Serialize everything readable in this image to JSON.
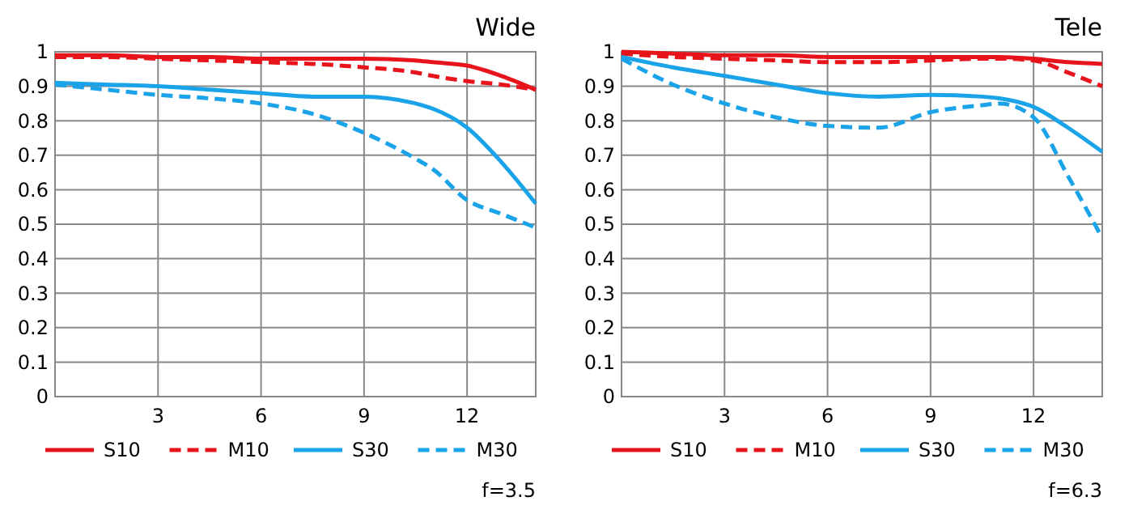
{
  "chart_data": [
    {
      "type": "line",
      "title": "Wide",
      "x": [
        0,
        1.5,
        3,
        4.5,
        6,
        7.5,
        9,
        10.5,
        11,
        12,
        13,
        14
      ],
      "xlim": [
        0,
        14
      ],
      "xticks": [
        3,
        6,
        9,
        12
      ],
      "ylim": [
        0,
        1
      ],
      "yticks": [
        0,
        0.1,
        0.2,
        0.3,
        0.4,
        0.5,
        0.6,
        0.7,
        0.8,
        0.9,
        1
      ],
      "grid": true,
      "legend": "bottom",
      "annotations": [
        "f=3.5"
      ],
      "series": [
        {
          "name": "S10",
          "color": "#e8141c",
          "line_style": "solid",
          "values": [
            0.99,
            0.99,
            0.985,
            0.985,
            0.98,
            0.98,
            0.98,
            0.975,
            0.97,
            0.96,
            0.93,
            0.89
          ]
        },
        {
          "name": "M10",
          "color": "#e8141c",
          "line_style": "dashed",
          "values": [
            0.985,
            0.985,
            0.98,
            0.975,
            0.97,
            0.965,
            0.955,
            0.94,
            0.93,
            0.915,
            0.905,
            0.89
          ]
        },
        {
          "name": "S30",
          "color": "#1aa3e8",
          "line_style": "solid",
          "values": [
            0.91,
            0.905,
            0.9,
            0.89,
            0.88,
            0.87,
            0.87,
            0.85,
            0.835,
            0.78,
            0.68,
            0.56
          ]
        },
        {
          "name": "M30",
          "color": "#1aa3e8",
          "line_style": "dashed",
          "values": [
            0.905,
            0.89,
            0.875,
            0.865,
            0.85,
            0.82,
            0.765,
            0.69,
            0.66,
            0.57,
            0.53,
            0.49
          ]
        }
      ]
    },
    {
      "type": "line",
      "title": "Tele",
      "x": [
        0,
        1.5,
        3,
        4.5,
        6,
        7.5,
        9,
        10.5,
        11,
        12,
        13,
        14
      ],
      "xlim": [
        0,
        14
      ],
      "xticks": [
        3,
        6,
        9,
        12
      ],
      "ylim": [
        0,
        1
      ],
      "yticks": [
        0,
        0.1,
        0.2,
        0.3,
        0.4,
        0.5,
        0.6,
        0.7,
        0.8,
        0.9,
        1
      ],
      "grid": true,
      "legend": "bottom",
      "annotations": [
        "f=6.3"
      ],
      "series": [
        {
          "name": "S10",
          "color": "#e8141c",
          "line_style": "solid",
          "values": [
            1.0,
            0.995,
            0.99,
            0.99,
            0.985,
            0.985,
            0.985,
            0.985,
            0.985,
            0.98,
            0.97,
            0.965
          ]
        },
        {
          "name": "M10",
          "color": "#e8141c",
          "line_style": "dashed",
          "values": [
            0.995,
            0.985,
            0.98,
            0.975,
            0.97,
            0.97,
            0.975,
            0.98,
            0.98,
            0.975,
            0.94,
            0.9
          ]
        },
        {
          "name": "S30",
          "color": "#1aa3e8",
          "line_style": "solid",
          "values": [
            0.985,
            0.955,
            0.93,
            0.905,
            0.88,
            0.87,
            0.875,
            0.87,
            0.865,
            0.84,
            0.78,
            0.71
          ]
        },
        {
          "name": "M30",
          "color": "#1aa3e8",
          "line_style": "dashed",
          "values": [
            0.98,
            0.905,
            0.85,
            0.81,
            0.785,
            0.78,
            0.825,
            0.845,
            0.85,
            0.81,
            0.64,
            0.46
          ]
        }
      ]
    }
  ]
}
